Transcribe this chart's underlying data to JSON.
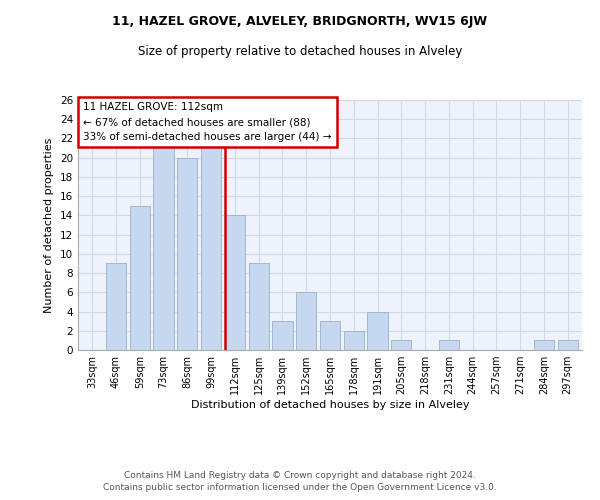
{
  "title1": "11, HAZEL GROVE, ALVELEY, BRIDGNORTH, WV15 6JW",
  "title2": "Size of property relative to detached houses in Alveley",
  "xlabel": "Distribution of detached houses by size in Alveley",
  "ylabel": "Number of detached properties",
  "categories": [
    "33sqm",
    "46sqm",
    "59sqm",
    "73sqm",
    "86sqm",
    "99sqm",
    "112sqm",
    "125sqm",
    "139sqm",
    "152sqm",
    "165sqm",
    "178sqm",
    "191sqm",
    "205sqm",
    "218sqm",
    "231sqm",
    "244sqm",
    "257sqm",
    "271sqm",
    "284sqm",
    "297sqm"
  ],
  "values": [
    0,
    9,
    15,
    22,
    20,
    22,
    14,
    9,
    3,
    6,
    3,
    2,
    4,
    1,
    0,
    1,
    0,
    0,
    0,
    1,
    1
  ],
  "bar_color": "#c5d8f0",
  "bar_edge_color": "#9ab0cc",
  "highlight_index": 6,
  "highlight_line_color": "#cc0000",
  "annotation_text": "11 HAZEL GROVE: 112sqm\n← 67% of detached houses are smaller (88)\n33% of semi-detached houses are larger (44) →",
  "annotation_box_color": "#ffffff",
  "annotation_box_edge_color": "#cc0000",
  "ylim": [
    0,
    26
  ],
  "yticks": [
    0,
    2,
    4,
    6,
    8,
    10,
    12,
    14,
    16,
    18,
    20,
    22,
    24,
    26
  ],
  "grid_color": "#d0d8e8",
  "background_color": "#eef2fa",
  "footer_line1": "Contains HM Land Registry data © Crown copyright and database right 2024.",
  "footer_line2": "Contains public sector information licensed under the Open Government Licence v3.0."
}
